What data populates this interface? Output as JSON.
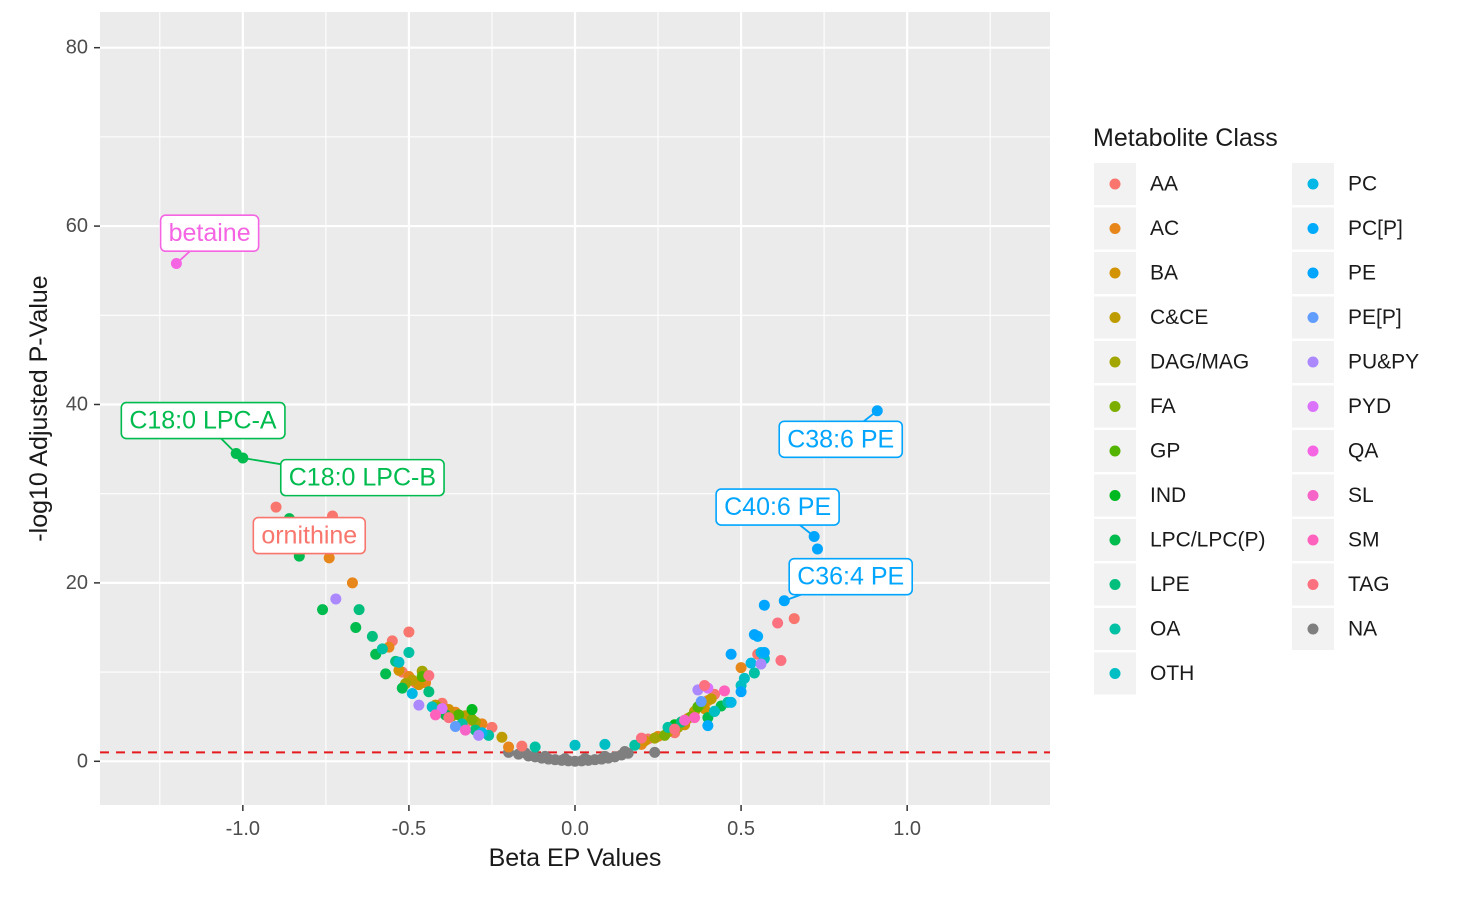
{
  "chart_data": {
    "type": "scatter",
    "xlabel": "Beta EP Values",
    "ylabel": "-log10 Adjusted P-Value",
    "xlim": [
      -1.43,
      1.43
    ],
    "ylim": [
      -4.9,
      84
    ],
    "x_ticks": [
      -1.0,
      -0.5,
      0.0,
      0.5,
      1.0
    ],
    "x_tick_labels": [
      "-1.0",
      "-0.5",
      "0.0",
      "0.5",
      "1.0"
    ],
    "y_ticks": [
      0,
      20,
      40,
      60,
      80
    ],
    "y_tick_labels": [
      "0",
      "20",
      "40",
      "60",
      "80"
    ],
    "grid": true,
    "threshold_line": {
      "y": 1,
      "color": "#e41a1c",
      "style": "dashed"
    },
    "legend": {
      "title": "Metabolite Class",
      "placement": "right",
      "columns": [
        [
          "AA",
          "AC",
          "BA",
          "C&CE",
          "DAG/MAG",
          "FA",
          "GP",
          "IND",
          "LPC/LPC(P)",
          "LPE",
          "OA",
          "OTH"
        ],
        [
          "PC",
          "PC[P]",
          "PE",
          "PE[P]",
          "PU&PY",
          "PYD",
          "QA",
          "SL",
          "SM",
          "TAG",
          "NA"
        ]
      ]
    },
    "class_colors": {
      "AA": "#F8766D",
      "AC": "#E7861B",
      "BA": "#D39200",
      "C&CE": "#BE9C00",
      "DAG/MAG": "#A3A500",
      "FA": "#7CAE00",
      "GP": "#53B400",
      "IND": "#00B81F",
      "LPC/LPC(P)": "#00BB4E",
      "LPE": "#00BF7D",
      "OA": "#00C1A3",
      "OTH": "#00BFC4",
      "PC": "#00B8E5",
      "PC[P]": "#00ABFD",
      "PE": "#00A5FF",
      "PE[P]": "#619CFF",
      "PU&PY": "#AC88FF",
      "PYD": "#DB72FB",
      "QA": "#F564E3",
      "SL": "#F564C6",
      "SM": "#FF62BC",
      "TAG": "#FC717F",
      "NA": "#7F7F7F"
    },
    "series": [
      {
        "name": "AA",
        "points": [
          [
            -0.9,
            28.5
          ],
          [
            -0.73,
            27.5
          ],
          [
            -0.55,
            13.5
          ],
          [
            -0.5,
            14.5
          ],
          [
            -0.52,
            10
          ],
          [
            -0.48,
            8.8
          ],
          [
            -0.4,
            6.5
          ],
          [
            -0.32,
            4.5
          ],
          [
            -0.25,
            3.8
          ],
          [
            -0.16,
            1.7
          ],
          [
            0.22,
            2.5
          ],
          [
            0.3,
            3.2
          ],
          [
            0.42,
            7.5
          ],
          [
            0.55,
            12
          ],
          [
            0.66,
            16
          ]
        ]
      },
      {
        "name": "AC",
        "points": [
          [
            -0.67,
            20
          ],
          [
            -0.74,
            22.8
          ],
          [
            -0.56,
            12.8
          ],
          [
            -0.5,
            9.5
          ],
          [
            -0.45,
            8.8
          ],
          [
            -0.36,
            5.5
          ],
          [
            -0.28,
            4.2
          ],
          [
            -0.2,
            1.6
          ],
          [
            0.2,
            1.9
          ],
          [
            0.25,
            2.8
          ],
          [
            0.34,
            4.8
          ],
          [
            0.4,
            6.8
          ],
          [
            0.5,
            10.5
          ]
        ]
      },
      {
        "name": "BA",
        "points": [
          [
            -0.53,
            10.2
          ],
          [
            -0.47,
            8.6
          ],
          [
            -0.38,
            5.8
          ],
          [
            0.21,
            2.3
          ],
          [
            0.33,
            4.1
          ],
          [
            0.39,
            5.9
          ]
        ]
      },
      {
        "name": "C&CE",
        "points": [
          [
            -0.49,
            9.1
          ],
          [
            -0.42,
            6.3
          ],
          [
            -0.33,
            5.1
          ],
          [
            -0.22,
            2.7
          ],
          [
            0.28,
            3.3
          ],
          [
            0.36,
            5.6
          ],
          [
            0.41,
            7
          ]
        ]
      },
      {
        "name": "DAG/MAG",
        "points": [
          [
            -0.51,
            8.7
          ],
          [
            -0.46,
            10.1
          ],
          [
            -0.37,
            5.1
          ],
          [
            -0.3,
            4.4
          ],
          [
            0.24,
            2.6
          ],
          [
            0.31,
            3.8
          ],
          [
            0.38,
            6.4
          ]
        ]
      },
      {
        "name": "FA",
        "points": [
          [
            -0.41,
            6
          ],
          [
            -0.31,
            4.7
          ],
          [
            0.27,
            2.9
          ],
          [
            0.35,
            5
          ]
        ]
      },
      {
        "name": "GP",
        "points": [
          [
            -0.46,
            9.5
          ],
          [
            -0.35,
            5.2
          ],
          [
            0.37,
            6.1
          ]
        ]
      },
      {
        "name": "IND",
        "points": [
          [
            -0.31,
            5.8
          ],
          [
            0.3,
            4.1
          ]
        ]
      },
      {
        "name": "LPC/LPC(P)",
        "points": [
          [
            -1.02,
            34.5
          ],
          [
            -1.0,
            34
          ],
          [
            -0.86,
            27.2
          ],
          [
            -0.83,
            23
          ],
          [
            -0.76,
            17
          ],
          [
            -0.66,
            15
          ],
          [
            -0.6,
            12
          ],
          [
            -0.57,
            9.8
          ],
          [
            -0.52,
            8.2
          ],
          [
            -0.39,
            5.2
          ],
          [
            0.4,
            4.9
          ],
          [
            0.44,
            6.2
          ]
        ]
      },
      {
        "name": "LPE",
        "points": [
          [
            -0.65,
            17
          ],
          [
            -0.61,
            14
          ],
          [
            -0.54,
            11.2
          ],
          [
            -0.44,
            7.8
          ],
          [
            -0.3,
            3.5
          ],
          [
            0.32,
            4.4
          ],
          [
            0.42,
            5.6
          ]
        ]
      },
      {
        "name": "OA",
        "points": [
          [
            -0.58,
            12.6
          ],
          [
            -0.5,
            12.2
          ],
          [
            -0.34,
            4.2
          ],
          [
            -0.26,
            2.9
          ],
          [
            -0.12,
            1.6
          ],
          [
            0.18,
            1.8
          ],
          [
            0.28,
            3.8
          ],
          [
            0.46,
            6.6
          ],
          [
            0.54,
            9.9
          ]
        ]
      },
      {
        "name": "OTH",
        "points": [
          [
            -0.53,
            11.1
          ],
          [
            -0.43,
            6.1
          ],
          [
            0.0,
            1.8
          ],
          [
            0.09,
            1.9
          ],
          [
            0.42,
            5.6
          ],
          [
            0.5,
            8.5
          ],
          [
            0.51,
            9.3
          ],
          [
            0.57,
            11.5
          ]
        ]
      },
      {
        "name": "PC",
        "points": [
          [
            -0.49,
            7.6
          ],
          [
            -0.28,
            3.2
          ],
          [
            0.47,
            6.6
          ],
          [
            0.53,
            11
          ],
          [
            0.56,
            12.2
          ]
        ]
      },
      {
        "name": "PC[P]",
        "points": [
          [
            0.55,
            14
          ],
          [
            0.57,
            12.2
          ],
          [
            0.4,
            4
          ]
        ]
      },
      {
        "name": "PE",
        "points": [
          [
            0.91,
            39.3
          ],
          [
            0.72,
            25.2
          ],
          [
            0.73,
            23.8
          ],
          [
            0.63,
            18
          ],
          [
            0.57,
            17.5
          ],
          [
            0.54,
            14.2
          ],
          [
            0.47,
            12
          ],
          [
            0.5,
            7.8
          ]
        ]
      },
      {
        "name": "PE[P]",
        "points": [
          [
            0.38,
            6.7
          ],
          [
            -0.36,
            3.9
          ]
        ]
      },
      {
        "name": "PU&PY",
        "points": [
          [
            -0.72,
            18.2
          ],
          [
            -0.47,
            6.3
          ],
          [
            -0.29,
            2.9
          ],
          [
            0.56,
            10.9
          ],
          [
            0.37,
            8
          ]
        ]
      },
      {
        "name": "PYD",
        "points": [
          [
            -0.4,
            5.9
          ],
          [
            0.4,
            8.2
          ]
        ]
      },
      {
        "name": "QA",
        "points": [
          [
            -1.2,
            55.8
          ]
        ]
      },
      {
        "name": "SL",
        "points": [
          [
            -0.33,
            3.5
          ],
          [
            0.33,
            4.6
          ]
        ]
      },
      {
        "name": "SM",
        "points": [
          [
            -0.42,
            5.2
          ],
          [
            0.36,
            4.9
          ],
          [
            0.45,
            7.9
          ]
        ]
      },
      {
        "name": "TAG",
        "points": [
          [
            -0.44,
            9.6
          ],
          [
            -0.38,
            4.9
          ],
          [
            0.3,
            3.6
          ],
          [
            0.39,
            8.5
          ],
          [
            0.61,
            15.5
          ],
          [
            0.62,
            11.3
          ],
          [
            0.2,
            2.6
          ]
        ]
      },
      {
        "name": "NA",
        "points": [
          [
            -0.2,
            1.0
          ],
          [
            -0.17,
            0.8
          ],
          [
            -0.14,
            0.6
          ],
          [
            -0.12,
            0.5
          ],
          [
            -0.1,
            0.35
          ],
          [
            -0.08,
            0.25
          ],
          [
            -0.06,
            0.18
          ],
          [
            -0.04,
            0.1
          ],
          [
            -0.02,
            0.05
          ],
          [
            0.0,
            0.0
          ],
          [
            0.02,
            0.05
          ],
          [
            0.04,
            0.1
          ],
          [
            0.06,
            0.18
          ],
          [
            0.08,
            0.25
          ],
          [
            0.1,
            0.35
          ],
          [
            0.12,
            0.5
          ],
          [
            0.14,
            0.7
          ],
          [
            0.16,
            0.9
          ],
          [
            0.24,
            1.0
          ],
          [
            -0.09,
            0.55
          ],
          [
            0.09,
            0.55
          ],
          [
            -0.03,
            0.3
          ],
          [
            0.03,
            0.3
          ],
          [
            -0.15,
            0.95
          ],
          [
            0.15,
            1.1
          ]
        ]
      }
    ],
    "annotations": [
      {
        "label": "betaine",
        "class": "QA",
        "x": -1.2,
        "y": 55.8,
        "label_x": -1.1,
        "label_y": 59.2
      },
      {
        "label": "C18:0 LPC-A",
        "class": "LPC/LPC(P)",
        "x": -1.02,
        "y": 34.5,
        "label_x": -1.12,
        "label_y": 38.2
      },
      {
        "label": "C18:0 LPC-B",
        "class": "LPC/LPC(P)",
        "x": -1.0,
        "y": 34.0,
        "label_x": -0.64,
        "label_y": 31.8
      },
      {
        "label": "ornithine",
        "class": "AA",
        "x": -0.73,
        "y": 27.5,
        "label_x": -0.8,
        "label_y": 25.3
      },
      {
        "label": "C38:6 PE",
        "class": "PE",
        "x": 0.91,
        "y": 39.3,
        "label_x": 0.8,
        "label_y": 36.1
      },
      {
        "label": "C40:6 PE",
        "class": "PE",
        "x": 0.72,
        "y": 25.2,
        "label_x": 0.61,
        "label_y": 28.5
      },
      {
        "label": "C36:4 PE",
        "class": "PE",
        "x": 0.63,
        "y": 18.0,
        "label_x": 0.83,
        "label_y": 20.7
      }
    ]
  }
}
